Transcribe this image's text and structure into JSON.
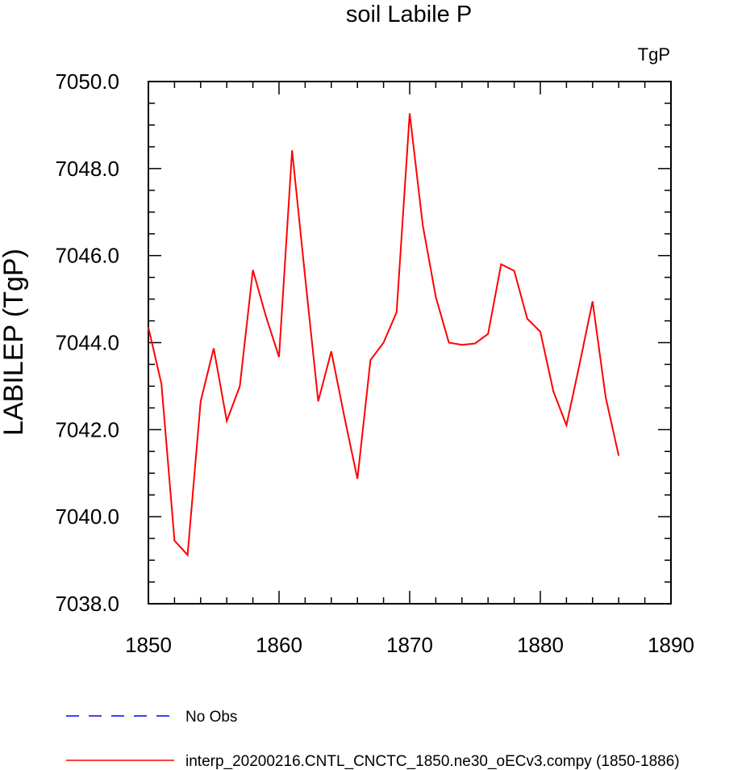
{
  "chart_data": {
    "type": "line",
    "title": "soil Labile P",
    "units_label": "TgP",
    "ylabel": "LABILEP  (TgP)",
    "xlabel": "",
    "xlim": [
      1850,
      1890
    ],
    "ylim": [
      7038.0,
      7050.0
    ],
    "x_ticks": [
      1850,
      1860,
      1870,
      1880,
      1890
    ],
    "y_ticks": [
      7038.0,
      7040.0,
      7042.0,
      7044.0,
      7046.0,
      7048.0,
      7050.0
    ],
    "x_tick_labels": [
      "1850",
      "1860",
      "1870",
      "1880",
      "1890"
    ],
    "y_tick_labels": [
      "7038.0",
      "7040.0",
      "7042.0",
      "7044.0",
      "7046.0",
      "7048.0",
      "7050.0"
    ],
    "series": [
      {
        "name": "interp_20200216.CNTL_CNCTC_1850.ne30_oECv3.compy (1850-1886)",
        "color": "#ff0000",
        "style": "solid",
        "x": [
          1850,
          1851,
          1852,
          1853,
          1854,
          1855,
          1856,
          1857,
          1858,
          1859,
          1860,
          1861,
          1862,
          1863,
          1864,
          1865,
          1866,
          1867,
          1868,
          1869,
          1870,
          1871,
          1872,
          1873,
          1874,
          1875,
          1876,
          1877,
          1878,
          1879,
          1880,
          1881,
          1882,
          1883,
          1884,
          1885,
          1886
        ],
        "values": [
          7044.35,
          7043.05,
          7039.45,
          7039.12,
          7042.65,
          7043.87,
          7042.2,
          7043.0,
          7045.67,
          7044.6,
          7043.67,
          7048.42,
          7045.5,
          7042.65,
          7043.8,
          7042.3,
          7040.87,
          7043.6,
          7044.0,
          7044.7,
          7049.27,
          7046.7,
          7045.05,
          7044.0,
          7043.95,
          7043.98,
          7044.2,
          7045.8,
          7045.65,
          7044.55,
          7044.25,
          7042.88,
          7042.1,
          7043.5,
          7044.95,
          7042.75,
          7041.4
        ]
      }
    ],
    "legend": [
      {
        "label": "No Obs",
        "color": "#0000ff",
        "style": "dashed"
      },
      {
        "label": "interp_20200216.CNTL_CNCTC_1850.ne30_oECv3.compy (1850-1886)",
        "color": "#ff0000",
        "style": "solid"
      }
    ],
    "legend_placement": "bottom",
    "grid": false
  }
}
